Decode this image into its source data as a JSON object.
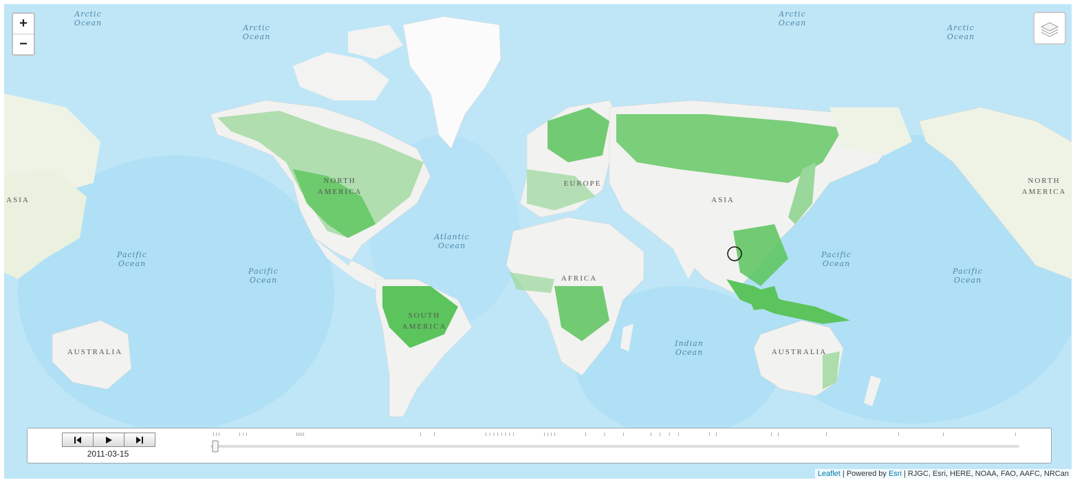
{
  "map": {
    "ocean_labels": [
      {
        "id": "arctic-1",
        "text": "Arctic\nOcean"
      },
      {
        "id": "arctic-2",
        "text": "Arctic\nOcean"
      },
      {
        "id": "arctic-3",
        "text": "Arctic\nOcean"
      },
      {
        "id": "arctic-4",
        "text": "Arctic\nOcean"
      },
      {
        "id": "pacific-1",
        "text": "Pacific\nOcean"
      },
      {
        "id": "pacific-2",
        "text": "Pacific\nOcean"
      },
      {
        "id": "atlantic",
        "text": "Atlantic\nOcean"
      },
      {
        "id": "indian",
        "text": "Indian\nOcean"
      },
      {
        "id": "pacific-3",
        "text": "Pacific\nOcean"
      },
      {
        "id": "pacific-4",
        "text": "Pacific\nOcean"
      }
    ],
    "continent_labels": [
      {
        "id": "asia-west",
        "text": "ASIA"
      },
      {
        "id": "north-america",
        "text": "NORTH\nAMERICA"
      },
      {
        "id": "europe",
        "text": "EUROPE"
      },
      {
        "id": "asia",
        "text": "ASIA"
      },
      {
        "id": "africa",
        "text": "AFRICA"
      },
      {
        "id": "south-america",
        "text": "SOUTH\nAMERICA"
      },
      {
        "id": "australia-west",
        "text": "AUSTRALIA"
      },
      {
        "id": "australia",
        "text": "AUSTRALIA"
      },
      {
        "id": "north-america-east",
        "text": "NORTH\nAMERICA"
      }
    ]
  },
  "controls": {
    "zoom_in": "+",
    "zoom_out": "−",
    "layers_icon": "layers-icon"
  },
  "time_dimension": {
    "current_date": "2011-03-15",
    "buttons": [
      "skip-back-icon",
      "play-icon",
      "skip-forward-icon"
    ]
  },
  "attribution": {
    "leaflet": "Leaflet",
    "sep1": " | Powered by ",
    "esri": "Esri",
    "rest": " | RJGC, Esri, HERE, NOAA, FAO, AAFC, NRCan"
  },
  "colors": {
    "ocean": "#bfe6f7",
    "deep_ocean": "#a9dcf2",
    "land": "#f2f2f0",
    "forest": "#5cc45c",
    "tundra": "#dfeecf"
  }
}
